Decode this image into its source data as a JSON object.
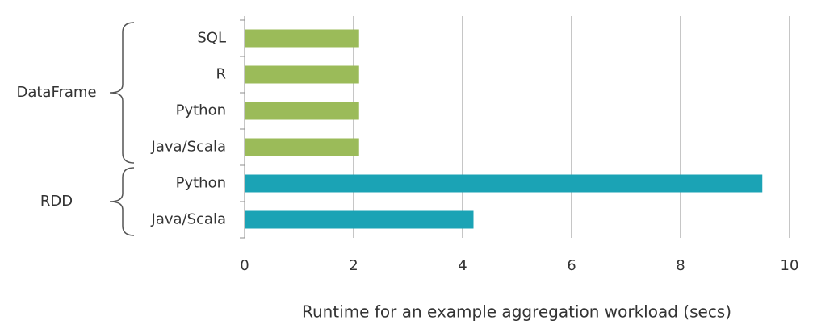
{
  "chart_data": {
    "type": "bar",
    "orientation": "horizontal",
    "x_label": "Runtime for an example aggregation workload (secs)",
    "groups": [
      {
        "name": "DataFrame",
        "color": "#9bbb59",
        "categories": [
          "SQL",
          "R",
          "Python",
          "Java/Scala"
        ],
        "values": [
          2.1,
          2.1,
          2.1,
          2.1
        ]
      },
      {
        "name": "RDD",
        "color": "#1ba3b5",
        "categories": [
          "Python",
          "Java/Scala"
        ],
        "values": [
          9.5,
          4.2
        ]
      }
    ],
    "xlim": [
      0,
      10
    ],
    "xticks": [
      0,
      2,
      4,
      6,
      8,
      10
    ],
    "grid": true
  }
}
